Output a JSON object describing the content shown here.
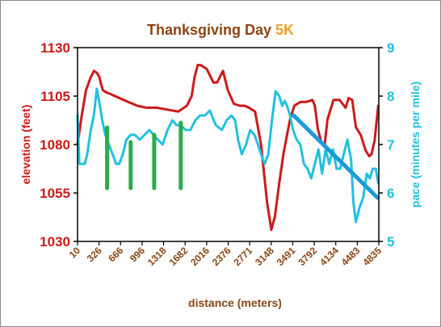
{
  "chart_data": {
    "type": "line",
    "title": {
      "main": "Thanksgiving Day",
      "accent": "5K"
    },
    "xlabel": "distance (meters)",
    "ylabel_left": "elevation (feet)",
    "ylabel_right": "pace (minutes per mile)",
    "xlim": [
      10,
      5000
    ],
    "ylim_left": [
      1030,
      1130
    ],
    "ylim_right": [
      5,
      9
    ],
    "x_ticks": [
      "10",
      "326",
      "666",
      "996",
      "1318",
      "1682",
      "2016",
      "2376",
      "2771",
      "3148",
      "3491",
      "3792",
      "4134",
      "4483",
      "4835"
    ],
    "y_ticks_left": [
      "1030",
      "1055",
      "1080",
      "1105",
      "1130"
    ],
    "y_ticks_right": [
      "5",
      "6",
      "7",
      "8",
      "9"
    ],
    "colors": {
      "title_main": "#8b4513",
      "title_accent": "#f0a020",
      "elevation": "#cc1a1a",
      "pace": "#22c0e0",
      "markers": "#2eaa4a",
      "trend": "#1a9ad8",
      "xtick": "#8b4513",
      "axis": "#000000"
    },
    "series": [
      {
        "name": "elevation (feet)",
        "axis": "left",
        "x": [
          10,
          80,
          150,
          220,
          280,
          330,
          370,
          400,
          430,
          480,
          560,
          700,
          850,
          1000,
          1150,
          1320,
          1500,
          1680,
          1820,
          1900,
          1950,
          2000,
          2050,
          2150,
          2260,
          2320,
          2370,
          2420,
          2500,
          2600,
          2700,
          2780,
          2850,
          2950,
          3050,
          3150,
          3220,
          3280,
          3350,
          3420,
          3480,
          3530,
          3600,
          3700,
          3800,
          3900,
          3940,
          3990,
          4050,
          4100,
          4150,
          4250,
          4350,
          4450,
          4500,
          4560,
          4620,
          4700,
          4780,
          4840,
          4880,
          4930,
          4990
        ],
        "y": [
          1080,
          1095,
          1108,
          1114,
          1118,
          1117,
          1115,
          1111,
          1108,
          1107,
          1106,
          1104,
          1102,
          1100,
          1099,
          1099,
          1098,
          1097,
          1100,
          1105,
          1115,
          1121,
          1121,
          1119,
          1112,
          1112,
          1115,
          1118,
          1108,
          1101,
          1100,
          1100,
          1099,
          1097,
          1080,
          1050,
          1036,
          1043,
          1060,
          1075,
          1085,
          1093,
          1100,
          1102,
          1102,
          1103,
          1100,
          1088,
          1081,
          1079,
          1093,
          1103,
          1103,
          1099,
          1104,
          1103,
          1089,
          1085,
          1077,
          1074,
          1075,
          1082,
          1100
        ]
      },
      {
        "name": "pace (minutes per mile)",
        "axis": "right",
        "x": [
          10,
          40,
          80,
          130,
          170,
          230,
          280,
          330,
          380,
          420,
          470,
          530,
          590,
          650,
          700,
          760,
          820,
          890,
          960,
          1040,
          1120,
          1200,
          1270,
          1340,
          1420,
          1500,
          1580,
          1650,
          1720,
          1800,
          1880,
          1960,
          2040,
          2120,
          2200,
          2300,
          2400,
          2480,
          2560,
          2620,
          2670,
          2730,
          2800,
          2870,
          2940,
          3000,
          3050,
          3110,
          3170,
          3230,
          3290,
          3350,
          3400,
          3440,
          3480,
          3530,
          3580,
          3640,
          3700,
          3760,
          3820,
          3880,
          3940,
          4000,
          4060,
          4120,
          4180,
          4240,
          4300,
          4360,
          4420,
          4480,
          4540,
          4580,
          4620,
          4680,
          4740,
          4800,
          4850,
          4900,
          4950,
          4990
        ],
        "y": [
          7.6,
          6.6,
          6.6,
          6.6,
          6.8,
          7.3,
          7.6,
          8.15,
          7.8,
          7.5,
          7.2,
          7.0,
          6.8,
          6.6,
          6.6,
          6.8,
          7.1,
          7.2,
          7.2,
          7.1,
          7.2,
          7.3,
          7.2,
          7.1,
          7.0,
          7.3,
          7.5,
          7.4,
          7.4,
          7.3,
          7.3,
          7.5,
          7.6,
          7.6,
          7.7,
          7.4,
          7.3,
          7.5,
          7.6,
          7.5,
          7.1,
          6.8,
          7.0,
          7.3,
          7.2,
          7.0,
          6.8,
          6.6,
          6.8,
          7.5,
          8.1,
          8.0,
          7.8,
          7.9,
          7.8,
          7.6,
          7.3,
          7.1,
          7.0,
          6.6,
          6.5,
          6.3,
          6.6,
          6.9,
          6.4,
          6.9,
          6.6,
          6.9,
          6.5,
          6.5,
          6.8,
          7.1,
          6.7,
          5.8,
          5.4,
          5.7,
          5.9,
          6.4,
          6.3,
          6.5,
          6.5,
          6.2
        ]
      }
    ],
    "markers": {
      "axis": "right",
      "x": [
        500,
        890,
        1280,
        1720
      ],
      "top": [
        7.35,
        7.05,
        7.2,
        7.45
      ],
      "bottom": [
        6.1,
        6.1,
        6.1,
        6.1
      ]
    },
    "trend": {
      "axis": "right",
      "x": [
        3590,
        4980
      ],
      "y": [
        7.6,
        5.9
      ]
    }
  }
}
